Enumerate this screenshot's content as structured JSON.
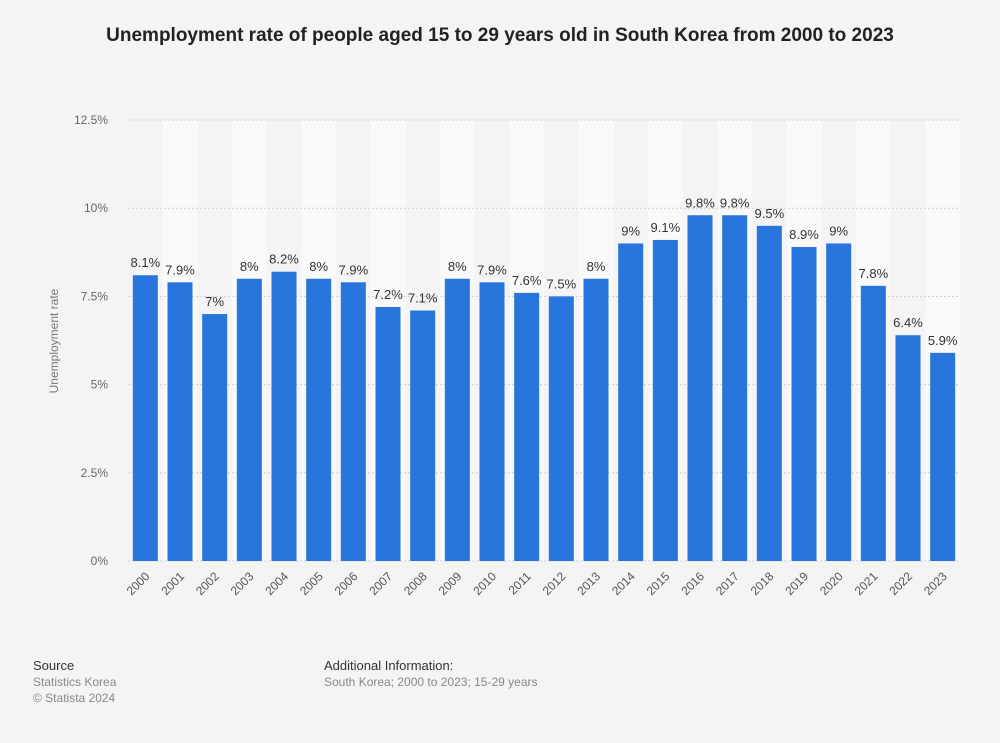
{
  "chart_data": {
    "type": "bar",
    "title": "Unemployment rate of people aged 15 to 29 years old in South Korea from 2000 to 2023",
    "xlabel": "",
    "ylabel": "Unemployment rate",
    "ylim": [
      0,
      12.5
    ],
    "yticks": [
      0,
      2.5,
      5,
      7.5,
      10,
      12.5
    ],
    "ytick_labels": [
      "0%",
      "2.5%",
      "5%",
      "7.5%",
      "10%",
      "12.5%"
    ],
    "grid": true,
    "categories": [
      "2000",
      "2001",
      "2002",
      "2003",
      "2004",
      "2005",
      "2006",
      "2007",
      "2008",
      "2009",
      "2010",
      "2011",
      "2012",
      "2013",
      "2014",
      "2015",
      "2016",
      "2017",
      "2018",
      "2019",
      "2020",
      "2021",
      "2022",
      "2023"
    ],
    "values": [
      8.1,
      7.9,
      7,
      8,
      8.2,
      8,
      7.9,
      7.2,
      7.1,
      8,
      7.9,
      7.6,
      7.5,
      8,
      9,
      9.1,
      9.8,
      9.8,
      9.5,
      8.9,
      9,
      7.8,
      6.4,
      5.9
    ],
    "data_labels": [
      "8.1%",
      "7.9%",
      "7%",
      "8%",
      "8.2%",
      "8%",
      "7.9%",
      "7.2%",
      "7.1%",
      "8%",
      "7.9%",
      "7.6%",
      "7.5%",
      "8%",
      "9%",
      "9.1%",
      "9.8%",
      "9.8%",
      "9.5%",
      "8.9%",
      "9%",
      "7.8%",
      "6.4%",
      "5.9%"
    ],
    "bar_color": "#2876dd"
  },
  "footer": {
    "source_heading": "Source",
    "source_name": "Statistics Korea",
    "copyright": "© Statista 2024",
    "info_heading": "Additional Information:",
    "info_text": "South Korea; 2000 to 2023; 15-29 years"
  }
}
